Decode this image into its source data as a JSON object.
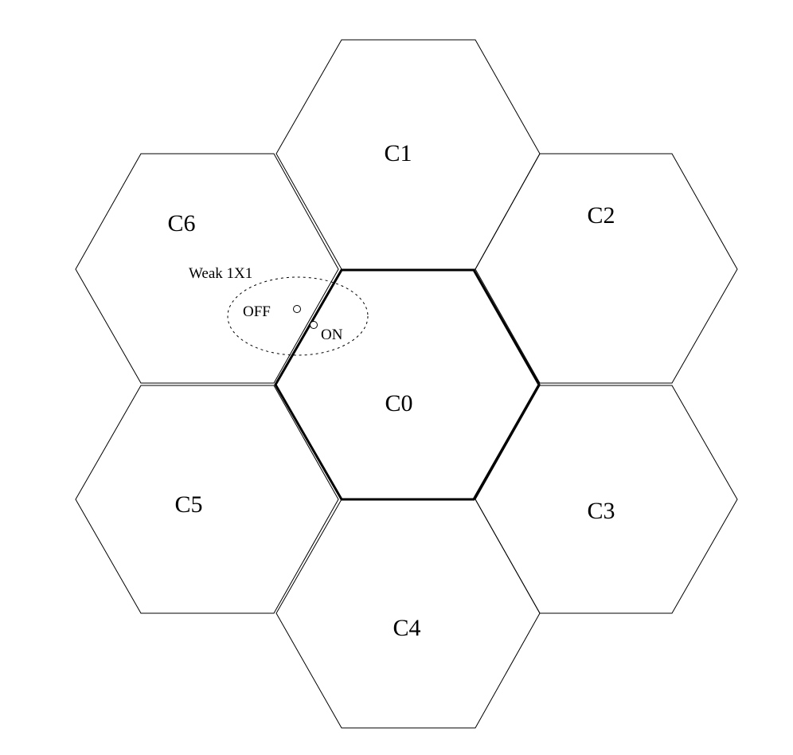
{
  "cells": {
    "c0": "C0",
    "c1": "C1",
    "c2": "C2",
    "c3": "C3",
    "c4": "C4",
    "c5": "C5",
    "c6": "C6"
  },
  "overlap_region": {
    "label": "Weak 1X1",
    "off_label": "OFF",
    "on_label": "ON"
  }
}
